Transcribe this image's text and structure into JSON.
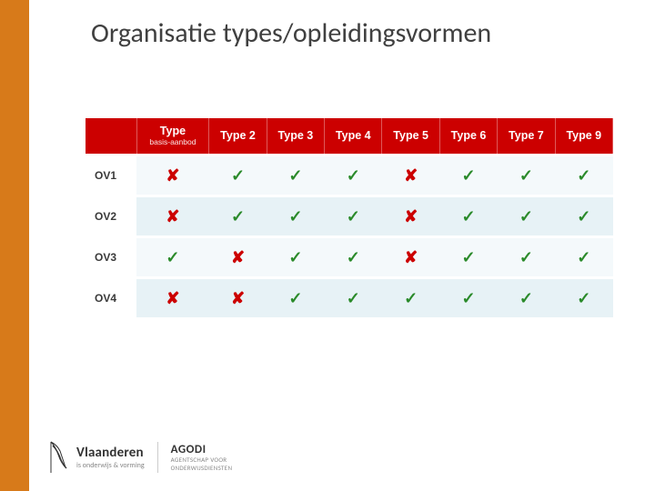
{
  "slide": {
    "title": "Organisatie types/opleidingsvormen",
    "title_fontsize": 30,
    "title_color": "#404040",
    "left_stripe_color": "#d77a1a",
    "background_color": "#ffffff"
  },
  "table": {
    "type": "table",
    "header_bg": "#cc0000",
    "header_text_color": "#ffffff",
    "header_fontsize": 12,
    "row_odd_bg": "#f4f9fb",
    "row_even_bg": "#e7f2f6",
    "row_label_color": "#3a3a3a",
    "check_color": "#2a8a2a",
    "cross_color": "#cc0000",
    "columns": [
      {
        "main": "",
        "sub": ""
      },
      {
        "main": "Type",
        "sub": "basis-aanbod"
      },
      {
        "main": "Type 2",
        "sub": ""
      },
      {
        "main": "Type 3",
        "sub": ""
      },
      {
        "main": "Type 4",
        "sub": ""
      },
      {
        "main": "Type 5",
        "sub": ""
      },
      {
        "main": "Type 6",
        "sub": ""
      },
      {
        "main": "Type 7",
        "sub": ""
      },
      {
        "main": "Type 9",
        "sub": ""
      }
    ],
    "rows": [
      {
        "label": "OV1",
        "cells": [
          "cross",
          "check",
          "check",
          "check",
          "cross",
          "check",
          "check",
          "check"
        ]
      },
      {
        "label": "OV2",
        "cells": [
          "cross",
          "check",
          "check",
          "check",
          "cross",
          "check",
          "check",
          "check"
        ]
      },
      {
        "label": "OV3",
        "cells": [
          "check",
          "cross",
          "check",
          "check",
          "cross",
          "check",
          "check",
          "check"
        ]
      },
      {
        "label": "OV4",
        "cells": [
          "cross",
          "cross",
          "check",
          "check",
          "check",
          "check",
          "check",
          "check"
        ]
      }
    ],
    "glyphs": {
      "check": "✓",
      "cross": "✘"
    }
  },
  "footer": {
    "vlaanderen": {
      "line1": "Vlaanderen",
      "line2": "is onderwijs & vorming"
    },
    "agodi": {
      "line1": "AGODI",
      "line2": "AGENTSCHAP VOOR",
      "line3": "ONDERWIJSDIENSTEN"
    },
    "logo_color": "#333333"
  }
}
